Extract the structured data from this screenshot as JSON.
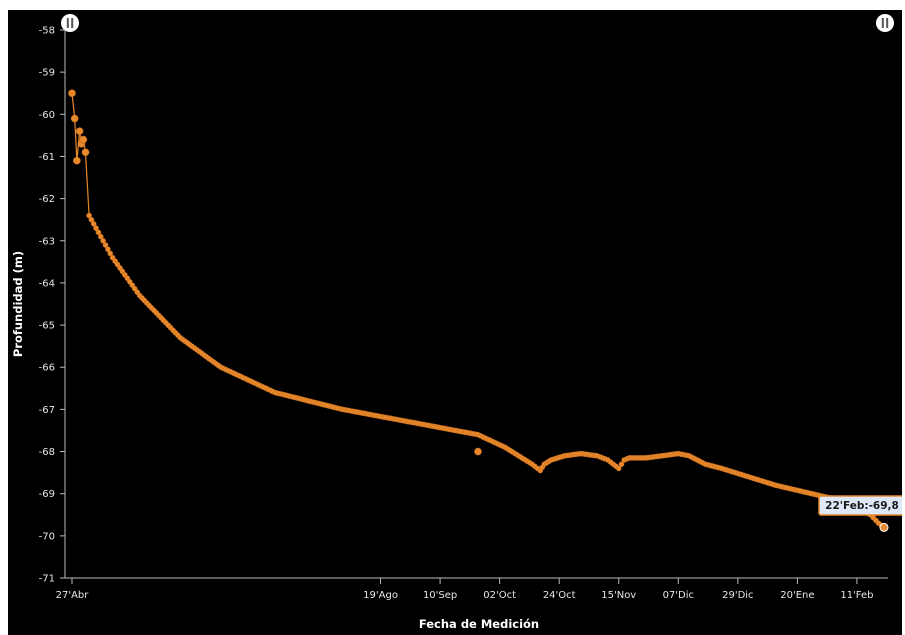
{
  "chart_data": {
    "type": "line",
    "xlabel": "Fecha de Medición",
    "ylabel": "Profundidad (m)",
    "ylim": [
      -71,
      -58
    ],
    "grid": false,
    "legend": "none",
    "colors": {
      "background": "#000000",
      "line": "#e8892c",
      "marker": "#e8892c",
      "tooltip_bg": "#dfe8f8",
      "tooltip_border": "#e8892c",
      "axis": "#bbbbbb",
      "text": "#ffffff"
    },
    "icons": [
      "pause-icon",
      "pause-icon"
    ],
    "y_ticks": [
      -58,
      -59,
      -60,
      -61,
      -62,
      -63,
      -64,
      -65,
      -66,
      -67,
      -68,
      -69,
      -70,
      -71
    ],
    "x_ticks": [
      {
        "label": "27'Abr",
        "day": 0
      },
      {
        "label": "19'Ago",
        "day": 114
      },
      {
        "label": "10'Sep",
        "day": 136
      },
      {
        "label": "02'Oct",
        "day": 158
      },
      {
        "label": "24'Oct",
        "day": 180
      },
      {
        "label": "15'Nov",
        "day": 202
      },
      {
        "label": "07'Dic",
        "day": 224
      },
      {
        "label": "29'Dic",
        "day": 246
      },
      {
        "label": "20'Ene",
        "day": 268
      },
      {
        "label": "11'Feb",
        "day": 290
      }
    ],
    "series": [
      {
        "points": [
          [
            0,
            -59.5
          ],
          [
            1,
            -60.1
          ],
          [
            1.8,
            -61.1
          ],
          [
            2.8,
            -60.4
          ],
          [
            3.5,
            -60.7
          ],
          [
            4.2,
            -60.6
          ],
          [
            5.0,
            -60.9
          ],
          [
            6.3,
            -62.4
          ],
          [
            8,
            -62.6
          ],
          [
            15,
            -63.4
          ],
          [
            25,
            -64.3
          ],
          [
            40,
            -65.3
          ],
          [
            55,
            -66.0
          ],
          [
            75,
            -66.6
          ],
          [
            100,
            -67.0
          ],
          [
            125,
            -67.3
          ],
          [
            150,
            -67.6
          ],
          [
            160,
            -67.9
          ],
          [
            170,
            -68.3
          ],
          [
            173,
            -68.45
          ],
          [
            174.5,
            -68.3
          ],
          [
            177,
            -68.2
          ],
          [
            182,
            -68.1
          ],
          [
            188,
            -68.05
          ],
          [
            194,
            -68.1
          ],
          [
            198,
            -68.2
          ],
          [
            200,
            -68.3
          ],
          [
            202,
            -68.4
          ],
          [
            204,
            -68.2
          ],
          [
            206,
            -68.15
          ],
          [
            212,
            -68.15
          ],
          [
            218,
            -68.1
          ],
          [
            224,
            -68.05
          ],
          [
            228,
            -68.1
          ],
          [
            234,
            -68.3
          ],
          [
            240,
            -68.4
          ],
          [
            250,
            -68.6
          ],
          [
            260,
            -68.8
          ],
          [
            270,
            -68.95
          ],
          [
            280,
            -69.1
          ],
          [
            290,
            -69.35
          ],
          [
            295,
            -69.5
          ],
          [
            298,
            -69.7
          ],
          [
            300,
            -69.8
          ]
        ],
        "outliers": [
          [
            150,
            -68.0
          ]
        ]
      }
    ],
    "tooltip": "22'Feb:-69,8"
  }
}
